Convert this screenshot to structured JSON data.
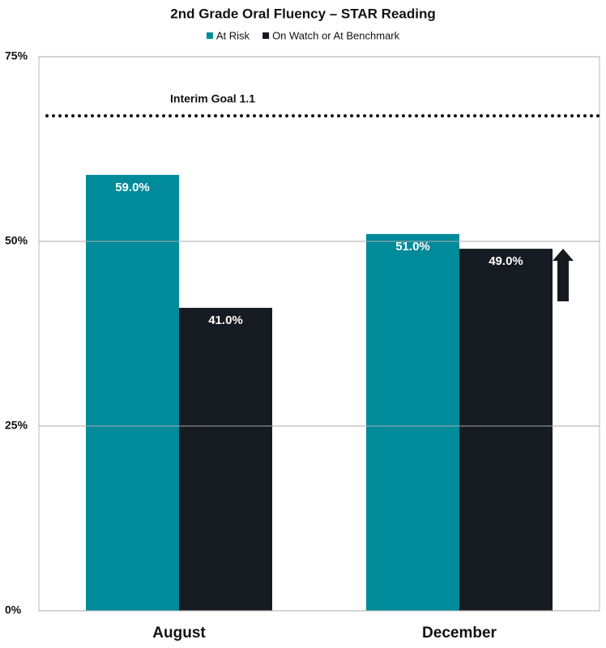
{
  "chart_data": {
    "type": "bar",
    "title": "2nd Grade Oral Fluency – STAR Reading",
    "categories": [
      "August",
      "December"
    ],
    "series": [
      {
        "name": "At Risk",
        "color": "#008b9a",
        "values": [
          59,
          51
        ],
        "value_labels": [
          "59.0%",
          "51.0%"
        ]
      },
      {
        "name": "On Watch or At Benchmark",
        "color": "#161b21",
        "values": [
          41,
          49
        ],
        "value_labels": [
          "41.0%",
          "49.0%"
        ]
      }
    ],
    "ylim": [
      0,
      75
    ],
    "yticks": [
      {
        "value": 0,
        "label": "0%"
      },
      {
        "value": 25,
        "label": "25%"
      },
      {
        "value": 50,
        "label": "50%"
      },
      {
        "value": 75,
        "label": "75%"
      }
    ],
    "grid": true,
    "goal": {
      "value": 67,
      "label": "Interim Goal 1.1"
    }
  }
}
